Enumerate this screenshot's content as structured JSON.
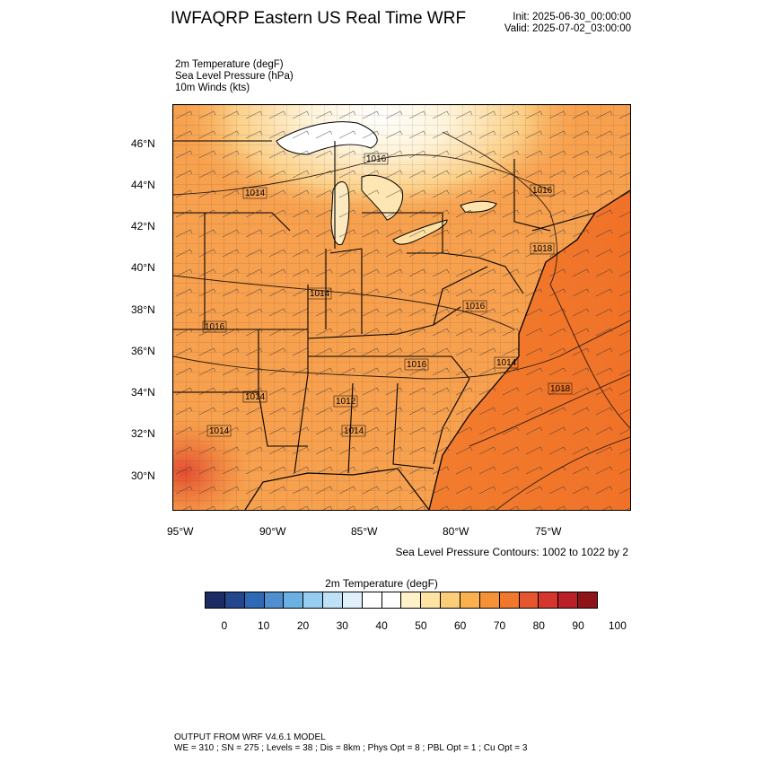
{
  "header": {
    "title": "IWFAQRP Eastern US Real Time WRF",
    "init": "Init: 2025-06-30_00:00:00",
    "valid": "Valid: 2025-07-02_03:00:00"
  },
  "fields": {
    "line1": "2m Temperature   (degF)",
    "line2": "Sea Level Pressure   (hPa)",
    "line3": "10m Winds   (kts)"
  },
  "map": {
    "lat_labels": [
      "46°N",
      "44°N",
      "42°N",
      "40°N",
      "38°N",
      "36°N",
      "34°N",
      "32°N",
      "30°N"
    ],
    "lon_labels": [
      "95°W",
      "90°W",
      "85°W",
      "80°W",
      "75°W"
    ],
    "isobar_labels": [
      "1016",
      "1014",
      "1016",
      "1018",
      "1014",
      "1016",
      "1014",
      "1016",
      "1014",
      "1012",
      "1014",
      "1014",
      "1016",
      "1018"
    ],
    "colors": {
      "ocean": "#f47a2c",
      "land_warm": "#f59b4a",
      "land_hot": "#e8603a",
      "north_cool": "#fde6b0",
      "lakes_region": "#ffffff",
      "lines": "#000000"
    }
  },
  "contour_note": "Sea Level Pressure Contours: 1002 to 1022 by 2",
  "colorbar": {
    "title": "2m Temperature  (degF)",
    "colors": [
      "#1b2c64",
      "#23468c",
      "#2f68b4",
      "#4f8fcf",
      "#6bb0e3",
      "#97cdf0",
      "#bfe1f6",
      "#e1f1fb",
      "#ffffff",
      "#ffffff",
      "#fff2c9",
      "#fde4a3",
      "#fccd78",
      "#fbb04d",
      "#f59238",
      "#f0772c",
      "#e5552e",
      "#d5362e",
      "#ba2027",
      "#8f1419"
    ],
    "ticks": [
      "0",
      "10",
      "20",
      "30",
      "40",
      "50",
      "60",
      "70",
      "80",
      "90",
      "100"
    ]
  },
  "footer": {
    "line1": "OUTPUT FROM WRF V4.6.1 MODEL",
    "line2": "WE = 310 ; SN = 275 ; Levels = 38 ; Dis = 8km ; Phys Opt = 8 ; PBL Opt = 1 ; Cu Opt = 3"
  }
}
